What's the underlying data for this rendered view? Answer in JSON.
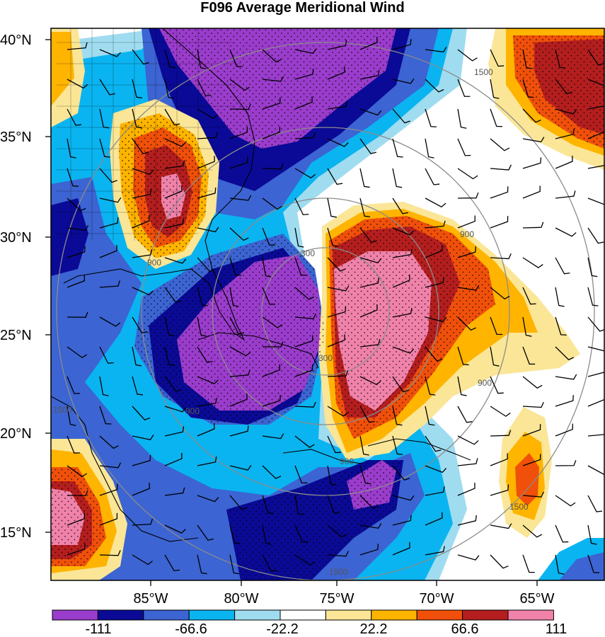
{
  "title": "F096 Average Meridional Wind",
  "axes": {
    "y_ticks": [
      "40°N",
      "35°N",
      "30°N",
      "25°N",
      "20°N",
      "15°N"
    ],
    "x_ticks": [
      "85°W",
      "80°W",
      "75°W",
      "70°W",
      "65°W"
    ]
  },
  "colorbar": {
    "colors": [
      "#9a3ccc",
      "#0a0a96",
      "#3c64d2",
      "#0ab4f0",
      "#a0dcf0",
      "#ffffff",
      "#fae696",
      "#ffb400",
      "#f0500a",
      "#b41e1e",
      "#f082aa"
    ],
    "labels": [
      "-111",
      "-66.6",
      "-22.2",
      "22.2",
      "66.6",
      "111"
    ]
  },
  "contour_labels": [
    "1500",
    "900",
    "300",
    "300",
    "900",
    "900",
    "900",
    "1500",
    "1500",
    "1500",
    "900"
  ],
  "colors": {
    "strong_north": "#f082aa",
    "strong_south": "#9a3ccc",
    "range_rings": "#8c8c8c"
  }
}
